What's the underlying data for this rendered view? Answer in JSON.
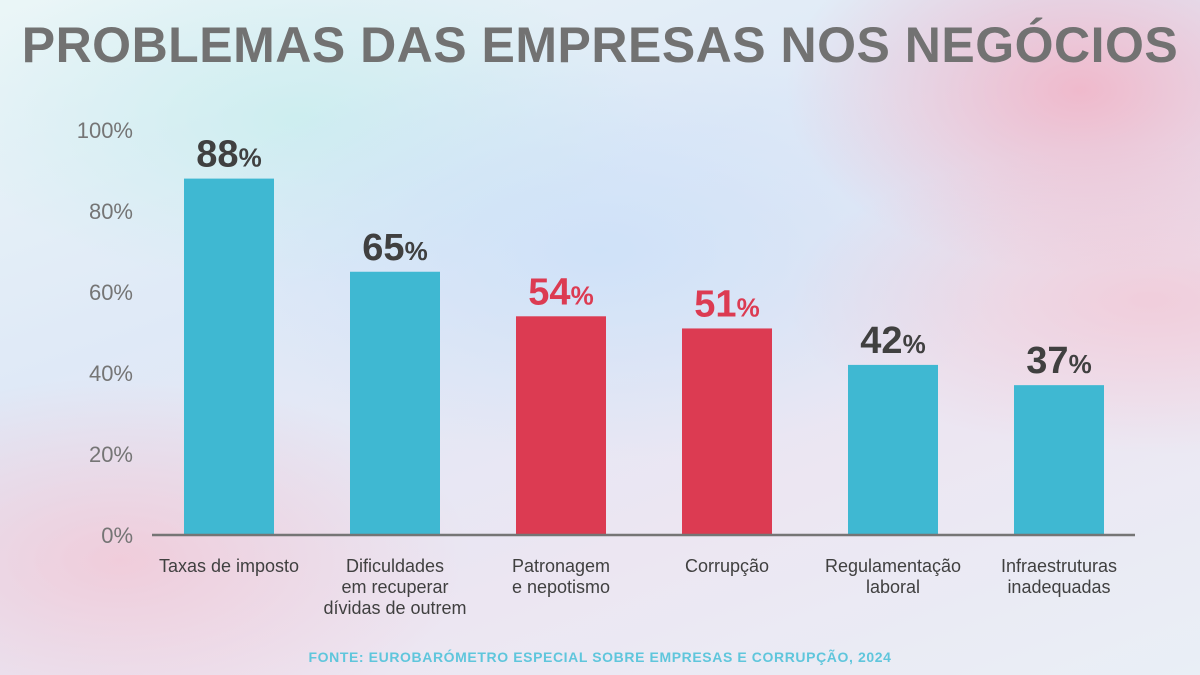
{
  "colors": {
    "default_bar": "#3fb8d2",
    "highlight_bar": "#dc3b52",
    "title": "#727272",
    "axis": "#757575",
    "label_dark": "#404040",
    "source": "#5fc6dc"
  },
  "chart_data": {
    "type": "bar",
    "title": "PROBLEMAS DAS EMPRESAS NOS NEGÓCIOS",
    "categories": [
      "Taxas de imposto",
      "Dificuldades em recuperar dívidas de outrem",
      "Patronagem e nepotismo",
      "Corrupção",
      "Regulamentação laboral",
      "Infraestruturas inadequadas"
    ],
    "category_lines": [
      [
        "Taxas de imposto"
      ],
      [
        "Dificuldades",
        "em recuperar",
        "dívidas de outrem"
      ],
      [
        "Patronagem",
        "e nepotismo"
      ],
      [
        "Corrupção"
      ],
      [
        "Regulamentação",
        "laboral"
      ],
      [
        "Infraestruturas",
        "inadequadas"
      ]
    ],
    "values": [
      88,
      65,
      54,
      51,
      42,
      37
    ],
    "highlighted": [
      false,
      false,
      true,
      true,
      false,
      false
    ],
    "value_suffix": "%",
    "ylim": [
      0,
      100
    ],
    "yticks": [
      "0%",
      "20%",
      "40%",
      "60%",
      "80%",
      "100%"
    ],
    "ytick_values": [
      0,
      20,
      40,
      60,
      80,
      100
    ],
    "grid": false,
    "source": "FONTE: EUROBARÓMETRO ESPECIAL SOBRE EMPRESAS E CORRUPÇÃO, 2024"
  }
}
